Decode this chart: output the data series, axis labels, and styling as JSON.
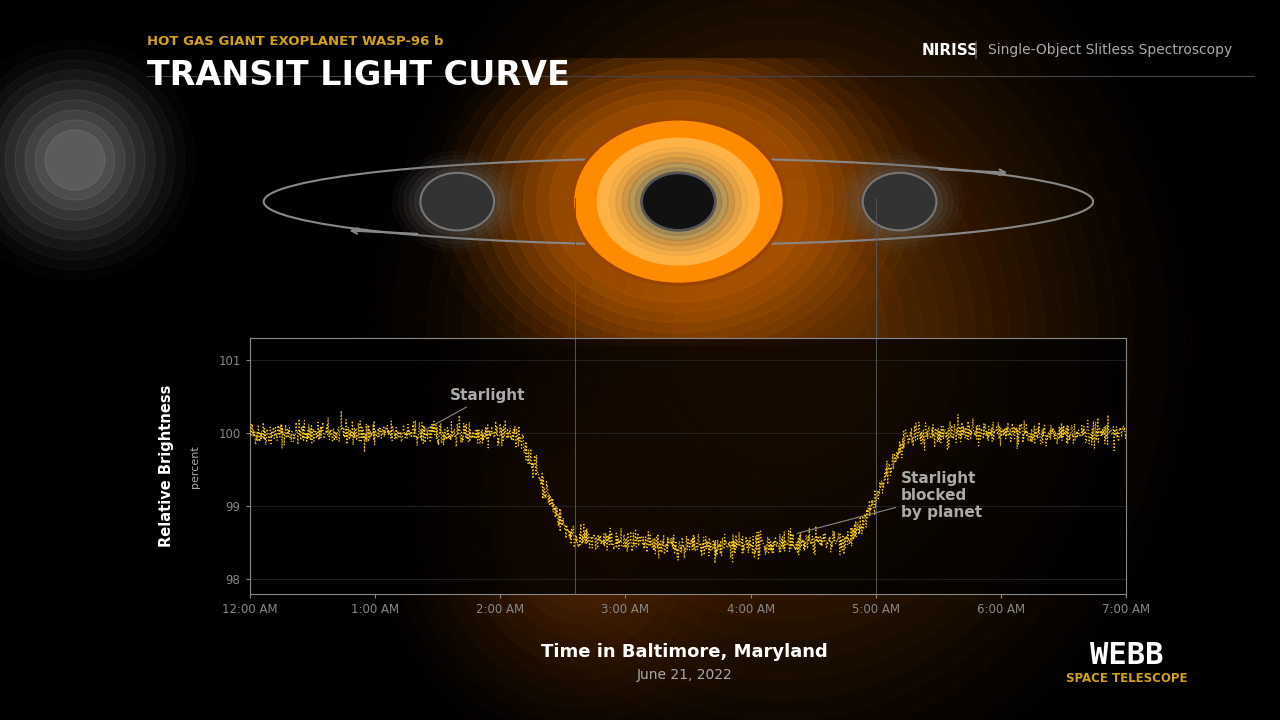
{
  "background_color": "#000000",
  "title_subtitle": "HOT GAS GIANT EXOPLANET WASP-96 b",
  "title_main": "TRANSIT LIGHT CURVE",
  "title_subtitle_color": "#D4A017",
  "title_main_color": "#FFFFFF",
  "niriss_label": "NIRISS",
  "niriss_desc": "Single-Object Slitless Spectroscopy",
  "niriss_color": "#AAAAAA",
  "ylabel_main": "Relative Brightness",
  "ylabel_sub": "percent",
  "xlabel_main": "Time in Baltimore, Maryland",
  "xlabel_sub": "June 21, 2022",
  "xtick_labels": [
    "12:00 AM",
    "1:00 AM",
    "2:00 AM",
    "3:00 AM",
    "4:00 AM",
    "5:00 AM",
    "6:00 AM",
    "7:00 AM"
  ],
  "ytick_labels": [
    "98",
    "99",
    "100",
    "101"
  ],
  "ytick_values": [
    98,
    99,
    100,
    101
  ],
  "ylim": [
    97.8,
    101.3
  ],
  "xlim_hours": [
    0,
    7
  ],
  "line_color": "#F5C518",
  "plot_bg": "#000000",
  "axis_color": "#888888",
  "annotation_starlight": "Starlight",
  "annotation_blocked": "Starlight\nblocked\nby planet",
  "annotation_color": "#AAAAAA",
  "transit_start": 2.05,
  "transit_ingress_end": 2.65,
  "transit_egress_start": 4.75,
  "transit_end": 5.35,
  "baseline_value": 100.0,
  "min_value": 98.55,
  "noise_amplitude": 0.08,
  "webb_logo_color": "#FFFFFF",
  "webb_logo_orange": "#D4A017"
}
